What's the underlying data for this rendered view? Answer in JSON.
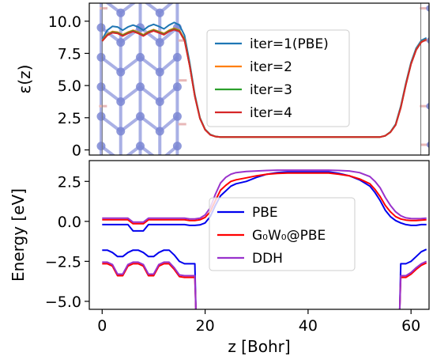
{
  "chart_data": [
    {
      "type": "line",
      "panel": "top",
      "ylabel": "ε(z)",
      "xlim": [
        -2.5,
        63.5
      ],
      "ylim": [
        -0.4,
        11.4
      ],
      "yticks": [
        "0",
        "2.5",
        "5.0",
        "7.5",
        "10.0"
      ],
      "ytick_values": [
        0,
        2.5,
        5.0,
        7.5,
        10.0
      ],
      "grid": false,
      "legend_position": "center-right",
      "background_image": "atomic-slab-structure",
      "series": [
        {
          "name": "iter=1(PBE)",
          "color": "#1f77b4",
          "x": [
            0,
            1,
            2,
            3,
            4,
            5,
            6,
            7,
            8,
            9,
            10,
            11,
            12,
            13,
            14,
            15,
            16,
            17,
            18,
            19,
            20,
            21,
            22,
            23,
            24,
            30,
            40,
            50,
            54,
            55,
            56,
            57,
            58,
            59,
            60,
            61,
            62,
            63
          ],
          "y": [
            8.6,
            9.3,
            9.6,
            9.55,
            9.3,
            9.55,
            9.7,
            9.55,
            9.3,
            9.6,
            9.75,
            9.6,
            9.4,
            9.7,
            9.9,
            9.7,
            8.9,
            6.8,
            4.3,
            2.5,
            1.6,
            1.2,
            1.05,
            1.0,
            1.0,
            1.0,
            1.0,
            1.0,
            1.0,
            1.1,
            1.4,
            2.0,
            3.4,
            5.2,
            6.8,
            7.9,
            8.5,
            8.7
          ]
        },
        {
          "name": "iter=2",
          "color": "#ff7f0e",
          "x": [
            0,
            1,
            2,
            3,
            4,
            5,
            6,
            7,
            8,
            9,
            10,
            11,
            12,
            13,
            14,
            15,
            16,
            17,
            18,
            19,
            20,
            21,
            22,
            23,
            24,
            30,
            40,
            50,
            54,
            55,
            56,
            57,
            58,
            59,
            60,
            61,
            62,
            63
          ],
          "y": [
            8.5,
            9.0,
            9.2,
            9.15,
            8.95,
            9.15,
            9.3,
            9.15,
            8.95,
            9.2,
            9.35,
            9.2,
            9.05,
            9.3,
            9.45,
            9.3,
            8.6,
            6.6,
            4.2,
            2.45,
            1.58,
            1.18,
            1.04,
            1.0,
            1.0,
            1.0,
            1.0,
            1.0,
            1.0,
            1.1,
            1.38,
            1.95,
            3.3,
            5.1,
            6.7,
            7.8,
            8.4,
            8.6
          ]
        },
        {
          "name": "iter=3",
          "color": "#2ca02c",
          "x": [
            0,
            1,
            2,
            3,
            4,
            5,
            6,
            7,
            8,
            9,
            10,
            11,
            12,
            13,
            14,
            15,
            16,
            17,
            18,
            19,
            20,
            21,
            22,
            23,
            24,
            30,
            40,
            50,
            54,
            55,
            56,
            57,
            58,
            59,
            60,
            61,
            62,
            63
          ],
          "y": [
            8.45,
            8.95,
            9.15,
            9.1,
            8.9,
            9.1,
            9.25,
            9.1,
            8.9,
            9.15,
            9.3,
            9.15,
            9.0,
            9.25,
            9.4,
            9.25,
            8.55,
            6.58,
            4.18,
            2.44,
            1.57,
            1.18,
            1.04,
            1.0,
            1.0,
            1.0,
            1.0,
            1.0,
            1.0,
            1.1,
            1.38,
            1.94,
            3.28,
            5.08,
            6.68,
            7.78,
            8.38,
            8.58
          ]
        },
        {
          "name": "iter=4",
          "color": "#d62728",
          "x": [
            0,
            1,
            2,
            3,
            4,
            5,
            6,
            7,
            8,
            9,
            10,
            11,
            12,
            13,
            14,
            15,
            16,
            17,
            18,
            19,
            20,
            21,
            22,
            23,
            24,
            30,
            40,
            50,
            54,
            55,
            56,
            57,
            58,
            59,
            60,
            61,
            62,
            63
          ],
          "y": [
            8.45,
            8.9,
            9.1,
            9.05,
            8.85,
            9.05,
            9.2,
            9.05,
            8.85,
            9.1,
            9.25,
            9.1,
            8.95,
            9.2,
            9.35,
            9.2,
            8.5,
            6.55,
            4.15,
            2.43,
            1.56,
            1.17,
            1.04,
            1.0,
            1.0,
            1.0,
            1.0,
            1.0,
            1.0,
            1.1,
            1.37,
            1.93,
            3.27,
            5.07,
            6.67,
            7.77,
            8.37,
            8.57
          ]
        }
      ]
    },
    {
      "type": "line",
      "panel": "bottom",
      "xlabel": "z [Bohr]",
      "ylabel": "Energy [eV]",
      "xlim": [
        -2.5,
        63.5
      ],
      "ylim": [
        -5.5,
        3.8
      ],
      "xticks": [
        "0",
        "20",
        "40",
        "60"
      ],
      "xtick_values": [
        0,
        20,
        40,
        60
      ],
      "yticks": [
        "−5.0",
        "−2.5",
        "0.0",
        "2.5"
      ],
      "ytick_values": [
        -5.0,
        -2.5,
        0.0,
        2.5
      ],
      "grid": false,
      "legend_position": "center",
      "series": [
        {
          "name": "PBE",
          "color": "#0000ee",
          "group": "conduction",
          "x": [
            0,
            5,
            6,
            8,
            9,
            16,
            17,
            18,
            19,
            20,
            21,
            22,
            23,
            24,
            25,
            26,
            28,
            30,
            32,
            34,
            36,
            40,
            44,
            46,
            48,
            50,
            52,
            53,
            54,
            55,
            56,
            57,
            58,
            59,
            60,
            61,
            62,
            63
          ],
          "y": [
            -0.2,
            -0.2,
            -0.6,
            -0.6,
            -0.2,
            -0.2,
            -0.25,
            -0.25,
            -0.22,
            -0.1,
            0.3,
            1.0,
            1.6,
            1.9,
            2.2,
            2.35,
            2.5,
            2.75,
            2.95,
            3.05,
            3.1,
            3.1,
            3.1,
            3.0,
            2.85,
            2.6,
            2.2,
            1.8,
            1.3,
            0.7,
            0.3,
            0.05,
            -0.1,
            -0.2,
            -0.25,
            -0.25,
            -0.2,
            -0.2
          ]
        },
        {
          "name": "PBE",
          "color": "#0000ee",
          "group": "valence",
          "x": [
            0,
            1,
            2,
            3,
            4,
            5,
            6,
            7,
            8,
            9,
            10,
            11,
            12,
            13,
            14,
            15,
            16,
            17,
            18,
            18.2
          ],
          "y": [
            -1.8,
            -1.8,
            -1.95,
            -2.2,
            -2.2,
            -1.95,
            -1.8,
            -1.8,
            -1.95,
            -2.2,
            -2.2,
            -1.95,
            -1.8,
            -1.8,
            -2.1,
            -2.5,
            -2.65,
            -2.65,
            -2.65,
            -5.5
          ]
        },
        {
          "name": "PBE",
          "color": "#0000ee",
          "group": "valence",
          "x": [
            57.8,
            58,
            59,
            60,
            61,
            62,
            63
          ],
          "y": [
            -5.5,
            -2.65,
            -2.65,
            -2.5,
            -2.2,
            -1.9,
            -1.75
          ]
        },
        {
          "name": "G₀W₀@PBE",
          "color": "#ff0000",
          "group": "conduction",
          "x": [
            0,
            5,
            6,
            8,
            9,
            16,
            17,
            18,
            19,
            20,
            21,
            22,
            23,
            24,
            25,
            26,
            28,
            30,
            32,
            34,
            36,
            40,
            44,
            46,
            48,
            50,
            52,
            53,
            54,
            55,
            56,
            57,
            58,
            59,
            60,
            61,
            62,
            63
          ],
          "y": [
            0.1,
            0.1,
            -0.15,
            -0.15,
            0.1,
            0.1,
            0.05,
            0.05,
            0.1,
            0.25,
            0.6,
            1.3,
            1.95,
            2.25,
            2.5,
            2.6,
            2.72,
            2.85,
            2.95,
            3.0,
            3.02,
            3.02,
            3.02,
            2.95,
            2.85,
            2.65,
            2.35,
            2.0,
            1.55,
            1.0,
            0.6,
            0.3,
            0.15,
            0.08,
            0.05,
            0.05,
            0.08,
            0.1
          ]
        },
        {
          "name": "G₀W₀@PBE",
          "color": "#ff0000",
          "group": "valence",
          "x": [
            0,
            1,
            2,
            3,
            4,
            5,
            6,
            7,
            8,
            9,
            10,
            11,
            12,
            13,
            14,
            15,
            16,
            17,
            18,
            18.2
          ],
          "y": [
            -2.65,
            -2.65,
            -2.8,
            -3.4,
            -3.4,
            -2.8,
            -2.65,
            -2.65,
            -2.8,
            -3.4,
            -3.4,
            -2.8,
            -2.65,
            -2.65,
            -3.0,
            -3.45,
            -3.5,
            -3.5,
            -3.5,
            -5.5
          ]
        },
        {
          "name": "G₀W₀@PBE",
          "color": "#ff0000",
          "group": "valence",
          "x": [
            57.8,
            58,
            59,
            60,
            61,
            62,
            63
          ],
          "y": [
            -5.5,
            -3.5,
            -3.5,
            -3.3,
            -3.0,
            -2.75,
            -2.6
          ]
        },
        {
          "name": "DDH",
          "color": "#9932cc",
          "group": "conduction",
          "x": [
            0,
            5,
            6,
            8,
            9,
            16,
            17,
            18,
            19,
            20,
            21,
            22,
            23,
            24,
            25,
            26,
            28,
            30,
            32,
            34,
            36,
            40,
            44,
            46,
            48,
            50,
            52,
            53,
            54,
            55,
            56,
            57,
            58,
            59,
            60,
            61,
            62,
            63
          ],
          "y": [
            0.2,
            0.2,
            -0.05,
            -0.05,
            0.2,
            0.2,
            0.15,
            0.15,
            0.2,
            0.4,
            0.85,
            1.7,
            2.4,
            2.75,
            2.95,
            3.05,
            3.12,
            3.15,
            3.18,
            3.2,
            3.2,
            3.2,
            3.2,
            3.18,
            3.15,
            3.05,
            2.8,
            2.5,
            2.1,
            1.5,
            1.0,
            0.6,
            0.35,
            0.22,
            0.18,
            0.17,
            0.18,
            0.2
          ]
        },
        {
          "name": "DDH",
          "color": "#9932cc",
          "group": "valence",
          "x": [
            0,
            1,
            2,
            3,
            4,
            5,
            6,
            7,
            8,
            9,
            10,
            11,
            12,
            13,
            14,
            15,
            16,
            17,
            18,
            18.2
          ],
          "y": [
            -2.55,
            -2.55,
            -2.7,
            -3.3,
            -3.3,
            -2.7,
            -2.55,
            -2.55,
            -2.7,
            -3.3,
            -3.3,
            -2.7,
            -2.55,
            -2.55,
            -2.9,
            -3.35,
            -3.4,
            -3.4,
            -3.4,
            -5.5
          ]
        },
        {
          "name": "DDH",
          "color": "#9932cc",
          "group": "valence",
          "x": [
            57.8,
            58,
            59,
            60,
            61,
            62,
            63
          ],
          "y": [
            -5.5,
            -3.4,
            -3.4,
            -3.2,
            -2.9,
            -2.65,
            -2.5
          ]
        }
      ]
    }
  ]
}
